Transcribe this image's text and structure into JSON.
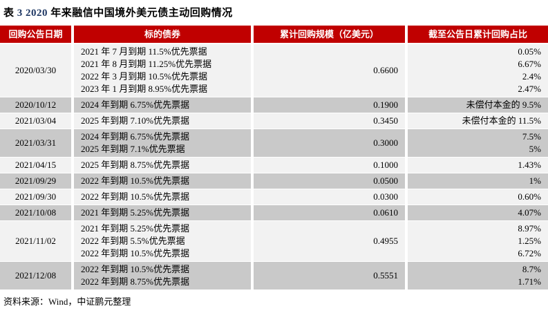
{
  "title": {
    "part1": "表 ",
    "part2": "3 2020 ",
    "part3": "年来融信中国境外美元债主动回购情况"
  },
  "table": {
    "columns": [
      "回购公告日期",
      "标的债券",
      "累计回购规模（亿美元）",
      "截至公告日累计回购占比"
    ],
    "rows": [
      {
        "date": "2020/03/30",
        "bonds": [
          "2021 年 7 月到期 11.5%优先票据",
          "2021 年 8 月到期 11.25%优先票据",
          "2022 年 3 月到期 10.5%优先票据",
          "2023 年 1 月到期 8.95%优先票据"
        ],
        "scale": "0.6600",
        "ratios": [
          "0.05%",
          "6.67%",
          "2.4%",
          "2.47%"
        ]
      },
      {
        "date": "2020/10/12",
        "bonds": [
          "2024 年到期 6.75%优先票据"
        ],
        "scale": "0.1900",
        "ratios": [
          "未偿付本金的 9.5%"
        ]
      },
      {
        "date": "2021/03/04",
        "bonds": [
          "2025 年到期 7.10%优先票据"
        ],
        "scale": "0.3450",
        "ratios": [
          "未偿付本金的 11.5%"
        ]
      },
      {
        "date": "2021/03/31",
        "bonds": [
          "2024 年到期 6.75%优先票据",
          "2025 年到期 7.1%优先票据"
        ],
        "scale": "0.3000",
        "ratios": [
          "7.5%",
          "5%"
        ]
      },
      {
        "date": "2021/04/15",
        "bonds": [
          "2025 年到期 8.75%优先票据"
        ],
        "scale": "0.1000",
        "ratios": [
          "1.43%"
        ]
      },
      {
        "date": "2021/09/29",
        "bonds": [
          "2022 年到期 10.5%优先票据"
        ],
        "scale": "0.0500",
        "ratios": [
          "1%"
        ]
      },
      {
        "date": "2021/09/30",
        "bonds": [
          "2022 年到期 10.5%优先票据"
        ],
        "scale": "0.0300",
        "ratios": [
          "0.60%"
        ]
      },
      {
        "date": "2021/10/08",
        "bonds": [
          "2021 年到期 5.25%优先票据"
        ],
        "scale": "0.0610",
        "ratios": [
          "4.07%"
        ]
      },
      {
        "date": "2021/11/02",
        "bonds": [
          "2021 年到期 5.25%优先票据",
          "2022 年到期 5.5%优先票据",
          "2022 年到期 10.5%优先票据"
        ],
        "scale": "0.4955",
        "ratios": [
          "8.97%",
          "1.25%",
          "6.72%"
        ]
      },
      {
        "date": "2021/12/08",
        "bonds": [
          "2022 年到期 10.5%优先票据",
          "2022 年到期 8.75%优先票据"
        ],
        "scale": "0.5551",
        "ratios": [
          "8.7%",
          "1.71%"
        ]
      }
    ]
  },
  "footer": {
    "source": "资料来源：Wind，中证鹏元整理"
  },
  "colors": {
    "header_bg": "#C00000",
    "header_text": "#FFFFFF",
    "row_light": "#F2F2F2",
    "row_dark": "#C9C9C9",
    "title_number": "#1F3864",
    "body_text": "#000000"
  }
}
